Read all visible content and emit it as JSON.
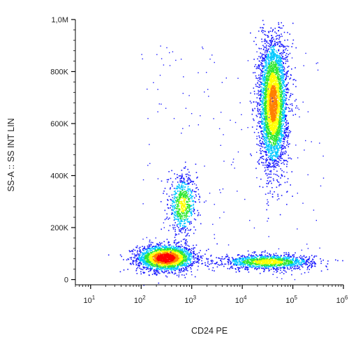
{
  "chart_data": {
    "type": "scatter",
    "subtype": "flow-cytometry-density-dot-plot",
    "title": "",
    "xlabel": "CD24 PE",
    "ylabel": "SS-A :: SS INT LIN",
    "x_scale": "log",
    "y_scale": "linear",
    "xlim": [
      5,
      1000000
    ],
    "ylim": [
      -20000,
      1000000
    ],
    "x_ticks": [
      {
        "base": "10",
        "exp": "1",
        "value": 10
      },
      {
        "base": "10",
        "exp": "2",
        "value": 100
      },
      {
        "base": "10",
        "exp": "3",
        "value": 1000
      },
      {
        "base": "10",
        "exp": "4",
        "value": 10000
      },
      {
        "base": "10",
        "exp": "5",
        "value": 100000
      },
      {
        "base": "10",
        "exp": "6",
        "value": 1000000
      }
    ],
    "y_ticks": [
      {
        "label": "0",
        "value": 0
      },
      {
        "label": "200K",
        "value": 200000
      },
      {
        "label": "400K",
        "value": 400000
      },
      {
        "label": "600K",
        "value": 600000
      },
      {
        "label": "800K",
        "value": 800000
      },
      {
        "label": "1,0M",
        "value": 1000000
      }
    ],
    "grid": false,
    "legend": "none",
    "colormap": [
      "#1a1aff",
      "#00c8ff",
      "#30e830",
      "#ffff00",
      "#ff8000",
      "#ff0000"
    ],
    "populations": [
      {
        "x_center": 300,
        "y_center": 85000,
        "x_spread_decades": 0.28,
        "y_spread": 25000,
        "n_points": 2400,
        "peak_density": 1.0
      },
      {
        "x_center": 650,
        "y_center": 290000,
        "x_spread_decades": 0.14,
        "y_spread": 55000,
        "n_points": 700,
        "peak_density": 0.55
      },
      {
        "x_center": 32000,
        "y_center": 70000,
        "x_spread_decades": 0.45,
        "y_spread": 14000,
        "n_points": 1300,
        "peak_density": 0.6
      },
      {
        "x_center": 40000,
        "y_center": 680000,
        "x_spread_decades": 0.14,
        "y_spread": 125000,
        "n_points": 3800,
        "peak_density": 0.75
      }
    ]
  }
}
